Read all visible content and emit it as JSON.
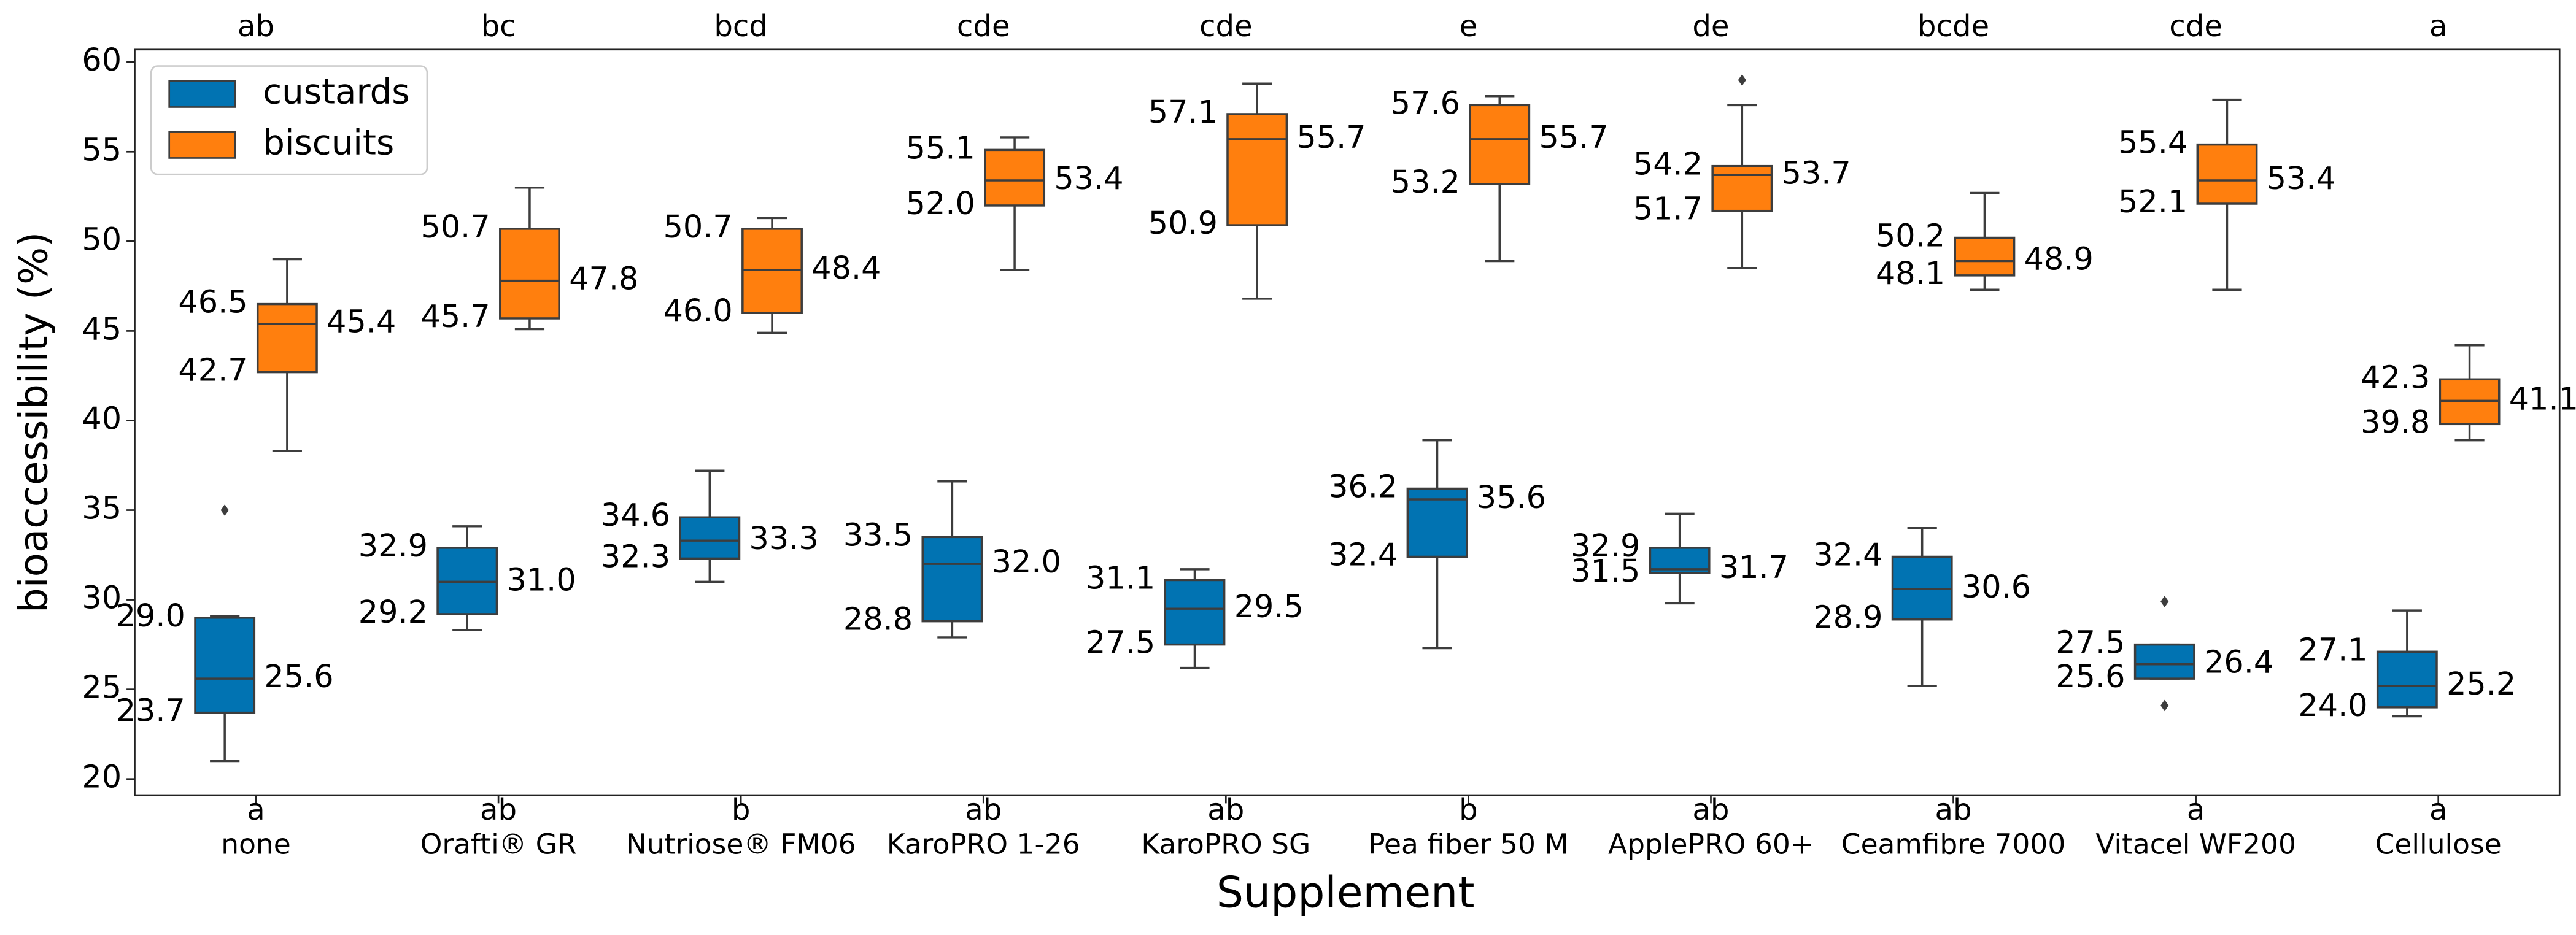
{
  "chart_data": {
    "type": "box",
    "xlabel": "Supplement",
    "ylabel": "bioaccessibility (%)",
    "categories": [
      "none",
      "Orafti® GR",
      "Nutriose® FM06",
      "KaroPRO 1-26",
      "KaroPRO SG",
      "Pea fiber 50 M",
      "ApplePRO 60+",
      "Ceamfibre 7000",
      "Vitacel WF200",
      "Cellulose"
    ],
    "top_labels": [
      "ab",
      "bc",
      "bcd",
      "cde",
      "cde",
      "e",
      "de",
      "bcde",
      "cde",
      "a"
    ],
    "bottom_labels": [
      "a",
      "ab",
      "b",
      "ab",
      "ab",
      "b",
      "ab",
      "ab",
      "a",
      "a"
    ],
    "ylim": [
      19.1,
      60.7
    ],
    "yticks": [
      20,
      25,
      30,
      35,
      40,
      45,
      50,
      55,
      60
    ],
    "legend": "upper left",
    "series": [
      {
        "name": "custards",
        "color": "#0173b2",
        "boxes": [
          {
            "whislo": 21.0,
            "q1": 23.7,
            "median": 25.6,
            "q3": 29.0,
            "whishi": 29.1,
            "fliers": [
              35.0
            ],
            "q1_label": "23.7",
            "median_label": "25.6",
            "q3_label": "29.0"
          },
          {
            "whislo": 28.3,
            "q1": 29.2,
            "median": 31.0,
            "q3": 32.9,
            "whishi": 34.1,
            "fliers": [],
            "q1_label": "29.2",
            "median_label": "31.0",
            "q3_label": "32.9"
          },
          {
            "whislo": 31.0,
            "q1": 32.3,
            "median": 33.3,
            "q3": 34.6,
            "whishi": 37.2,
            "fliers": [],
            "q1_label": "32.3",
            "median_label": "33.3",
            "q3_label": "34.6"
          },
          {
            "whislo": 27.9,
            "q1": 28.8,
            "median": 32.0,
            "q3": 33.5,
            "whishi": 36.6,
            "fliers": [],
            "q1_label": "28.8",
            "median_label": "32.0",
            "q3_label": "33.5"
          },
          {
            "whislo": 26.2,
            "q1": 27.5,
            "median": 29.5,
            "q3": 31.1,
            "whishi": 31.7,
            "fliers": [],
            "q1_label": "27.5",
            "median_label": "29.5",
            "q3_label": "31.1"
          },
          {
            "whislo": 27.3,
            "q1": 32.4,
            "median": 35.6,
            "q3": 36.2,
            "whishi": 38.9,
            "fliers": [],
            "q1_label": "32.4",
            "median_label": "35.6",
            "q3_label": "36.2"
          },
          {
            "whislo": 29.8,
            "q1": 31.5,
            "median": 31.7,
            "q3": 32.9,
            "whishi": 34.8,
            "fliers": [],
            "q1_label": "31.5",
            "median_label": "31.7",
            "q3_label": "32.9"
          },
          {
            "whislo": 25.2,
            "q1": 28.9,
            "median": 30.6,
            "q3": 32.4,
            "whishi": 34.0,
            "fliers": [],
            "q1_label": "28.9",
            "median_label": "30.6",
            "q3_label": "32.4"
          },
          {
            "whislo": 25.6,
            "q1": 25.6,
            "median": 26.4,
            "q3": 27.5,
            "whishi": 27.5,
            "fliers": [
              29.9,
              24.1
            ],
            "q1_label": "25.6",
            "median_label": "26.4",
            "q3_label": "27.5"
          },
          {
            "whislo": 23.5,
            "q1": 24.0,
            "median": 25.2,
            "q3": 27.1,
            "whishi": 29.4,
            "fliers": [],
            "q1_label": "24.0",
            "median_label": "25.2",
            "q3_label": "27.1"
          }
        ]
      },
      {
        "name": "biscuits",
        "color": "#ff7f0e",
        "boxes": [
          {
            "whislo": 38.3,
            "q1": 42.7,
            "median": 45.4,
            "q3": 46.5,
            "whishi": 49.0,
            "fliers": [],
            "q1_label": "42.7",
            "median_label": "45.4",
            "q3_label": "46.5"
          },
          {
            "whislo": 45.1,
            "q1": 45.7,
            "median": 47.8,
            "q3": 50.7,
            "whishi": 53.0,
            "fliers": [],
            "q1_label": "45.7",
            "median_label": "47.8",
            "q3_label": "50.7"
          },
          {
            "whislo": 44.9,
            "q1": 46.0,
            "median": 48.4,
            "q3": 50.7,
            "whishi": 51.3,
            "fliers": [],
            "q1_label": "46.0",
            "median_label": "48.4",
            "q3_label": "50.7"
          },
          {
            "whislo": 48.4,
            "q1": 52.0,
            "median": 53.4,
            "q3": 55.1,
            "whishi": 55.8,
            "fliers": [],
            "q1_label": "52.0",
            "median_label": "53.4",
            "q3_label": "55.1"
          },
          {
            "whislo": 46.8,
            "q1": 50.9,
            "median": 55.7,
            "q3": 57.1,
            "whishi": 58.8,
            "fliers": [],
            "q1_label": "50.9",
            "median_label": "55.7",
            "q3_label": "57.1"
          },
          {
            "whislo": 48.9,
            "q1": 53.2,
            "median": 55.7,
            "q3": 57.6,
            "whishi": 58.1,
            "fliers": [],
            "q1_label": "53.2",
            "median_label": "55.7",
            "q3_label": "57.6"
          },
          {
            "whislo": 48.5,
            "q1": 51.7,
            "median": 53.7,
            "q3": 54.2,
            "whishi": 57.6,
            "fliers": [
              59.0
            ],
            "q1_label": "51.7",
            "median_label": "53.7",
            "q3_label": "54.2"
          },
          {
            "whislo": 47.3,
            "q1": 48.1,
            "median": 48.9,
            "q3": 50.2,
            "whishi": 52.7,
            "fliers": [],
            "q1_label": "48.1",
            "median_label": "48.9",
            "q3_label": "50.2"
          },
          {
            "whislo": 47.3,
            "q1": 52.1,
            "median": 53.4,
            "q3": 55.4,
            "whishi": 57.9,
            "fliers": [],
            "q1_label": "52.1",
            "median_label": "53.4",
            "q3_label": "55.4"
          },
          {
            "whislo": 38.9,
            "q1": 39.8,
            "median": 41.1,
            "q3": 42.3,
            "whishi": 44.2,
            "fliers": [],
            "q1_label": "39.8",
            "median_label": "41.1",
            "q3_label": "42.3"
          }
        ]
      }
    ]
  }
}
